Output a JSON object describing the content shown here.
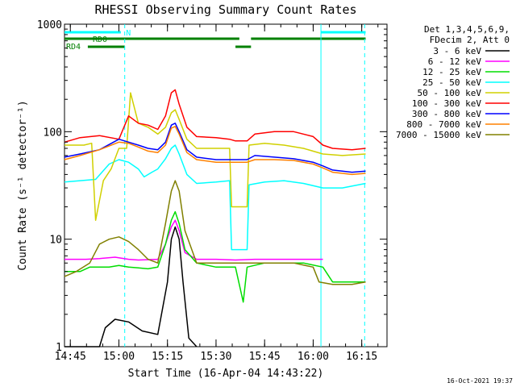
{
  "chart_data": {
    "type": "line",
    "title": "RHESSI Observing Summary Count Rates",
    "xlabel": "Start Time (16-Apr-04 14:43:22)",
    "ylabel": "Count Rate (s⁻¹ detector⁻¹)",
    "y_scale": "log",
    "xlim": [
      14.72,
      16.38
    ],
    "ylim": [
      1,
      1000
    ],
    "x_unit": "hours UT",
    "x_ticks": [
      {
        "value": 14.75,
        "label": "14:45"
      },
      {
        "value": 15.0,
        "label": "15:00"
      },
      {
        "value": 15.25,
        "label": "15:15"
      },
      {
        "value": 15.5,
        "label": "15:30"
      },
      {
        "value": 15.75,
        "label": "15:45"
      },
      {
        "value": 16.0,
        "label": "16:00"
      },
      {
        "value": 16.25,
        "label": "16:15"
      }
    ],
    "y_ticks": [
      {
        "value": 1,
        "label": "1"
      },
      {
        "value": 10,
        "label": "10"
      },
      {
        "value": 100,
        "label": "100"
      },
      {
        "value": 1000,
        "label": "1000"
      }
    ],
    "legend": {
      "placement": "outside-right",
      "header": [
        "Det 1,3,4,5,6,9,",
        "FDecim 2, Att 0"
      ]
    },
    "series": [
      {
        "name": "3 - 6 keV",
        "color": "#000000",
        "x": [
          14.72,
          14.9,
          14.93,
          14.98,
          15.05,
          15.12,
          15.2,
          15.25,
          15.27,
          15.29,
          15.31,
          15.33,
          15.36,
          15.4
        ],
        "y": [
          1,
          1,
          1.5,
          1.8,
          1.7,
          1.4,
          1.3,
          4,
          10,
          13,
          10,
          4,
          1.2,
          1
        ]
      },
      {
        "name": "6 - 12 keV",
        "color": "#ff00ff",
        "x": [
          14.72,
          14.83,
          14.9,
          14.98,
          15.05,
          15.1,
          15.2,
          15.24,
          15.27,
          15.29,
          15.31,
          15.34,
          15.4,
          15.5,
          15.6,
          15.7,
          15.8,
          15.9,
          16.0,
          16.05
        ],
        "y": [
          6.5,
          6.5,
          6.6,
          6.8,
          6.5,
          6.4,
          6.5,
          9,
          13,
          15,
          12,
          7.5,
          6.5,
          6.5,
          6.4,
          6.5,
          6.5,
          6.5,
          6.5,
          6.5
        ]
      },
      {
        "name": "12 - 25 keV",
        "color": "#00dd00",
        "x": [
          14.72,
          14.8,
          14.85,
          14.9,
          14.95,
          15.0,
          15.05,
          15.1,
          15.15,
          15.2,
          15.24,
          15.27,
          15.29,
          15.31,
          15.34,
          15.4,
          15.5,
          15.6,
          15.64,
          15.66,
          15.75,
          15.85,
          15.95,
          16.05,
          16.1,
          16.2,
          16.27
        ],
        "y": [
          5,
          5,
          5.5,
          5.5,
          5.5,
          5.7,
          5.5,
          5.4,
          5.3,
          5.5,
          9,
          15,
          18,
          14,
          8,
          6,
          5.5,
          5.5,
          2.6,
          5.5,
          6,
          6,
          6,
          5.5,
          4,
          4,
          4
        ]
      },
      {
        "name": "25 - 50 keV",
        "color": "#00ffff",
        "x": [
          14.72,
          14.8,
          14.88,
          14.95,
          15.0,
          15.05,
          15.1,
          15.13,
          15.17,
          15.2,
          15.24,
          15.27,
          15.29,
          15.31,
          15.35,
          15.4,
          15.5,
          15.57,
          15.58,
          15.66,
          15.67,
          15.75,
          15.85,
          15.95,
          16.05,
          16.15,
          16.27
        ],
        "y": [
          34,
          35,
          36,
          50,
          55,
          52,
          45,
          38,
          42,
          45,
          56,
          70,
          75,
          62,
          40,
          33,
          34,
          35,
          8,
          8,
          32,
          34,
          35,
          33,
          30,
          30,
          33
        ]
      },
      {
        "name": "50 - 100 keV",
        "color": "#d0d000",
        "x": [
          14.72,
          14.82,
          14.86,
          14.88,
          14.92,
          14.96,
          15.0,
          15.04,
          15.06,
          15.1,
          15.15,
          15.2,
          15.24,
          15.27,
          15.29,
          15.31,
          15.35,
          15.4,
          15.5,
          15.57,
          15.58,
          15.66,
          15.67,
          15.75,
          15.85,
          15.95,
          16.05,
          16.15,
          16.27
        ],
        "y": [
          75,
          75,
          78,
          15,
          35,
          45,
          70,
          70,
          230,
          120,
          110,
          95,
          110,
          150,
          160,
          130,
          85,
          70,
          70,
          70,
          20,
          20,
          75,
          78,
          75,
          70,
          62,
          60,
          62
        ]
      },
      {
        "name": "100 - 300 keV",
        "color": "#ff0000",
        "x": [
          14.72,
          14.8,
          14.9,
          15.0,
          15.05,
          15.1,
          15.15,
          15.2,
          15.24,
          15.27,
          15.29,
          15.31,
          15.35,
          15.4,
          15.5,
          15.57,
          15.6,
          15.66,
          15.7,
          15.8,
          15.9,
          16.0,
          16.05,
          16.1,
          16.2,
          16.27
        ],
        "y": [
          80,
          88,
          92,
          85,
          140,
          120,
          115,
          105,
          140,
          230,
          245,
          180,
          110,
          90,
          88,
          85,
          82,
          82,
          95,
          100,
          100,
          90,
          75,
          70,
          68,
          70
        ]
      },
      {
        "name": "300 - 800 keV",
        "color": "#0000ff",
        "x": [
          14.72,
          14.8,
          14.9,
          15.0,
          15.05,
          15.1,
          15.15,
          15.2,
          15.24,
          15.27,
          15.29,
          15.31,
          15.35,
          15.4,
          15.5,
          15.6,
          15.66,
          15.7,
          15.8,
          15.9,
          16.0,
          16.05,
          16.1,
          16.2,
          16.27
        ],
        "y": [
          58,
          62,
          68,
          85,
          80,
          75,
          70,
          68,
          80,
          115,
          120,
          100,
          68,
          58,
          55,
          55,
          55,
          60,
          58,
          56,
          52,
          48,
          44,
          42,
          43
        ]
      },
      {
        "name": "800 - 7000 keV",
        "color": "#ff8000",
        "x": [
          14.72,
          14.8,
          14.9,
          15.0,
          15.05,
          15.1,
          15.15,
          15.2,
          15.24,
          15.27,
          15.29,
          15.31,
          15.35,
          15.4,
          15.5,
          15.6,
          15.66,
          15.7,
          15.8,
          15.9,
          16.0,
          16.05,
          16.1,
          16.2,
          16.27
        ],
        "y": [
          55,
          60,
          68,
          80,
          78,
          72,
          66,
          64,
          75,
          108,
          112,
          95,
          64,
          55,
          52,
          52,
          52,
          55,
          55,
          54,
          50,
          46,
          42,
          40,
          41
        ]
      },
      {
        "name": "7000 - 15000 keV",
        "color": "#808000",
        "x": [
          14.72,
          14.78,
          14.85,
          14.9,
          14.95,
          15.0,
          15.05,
          15.1,
          15.15,
          15.2,
          15.24,
          15.27,
          15.29,
          15.31,
          15.34,
          15.4,
          15.5,
          15.6,
          15.7,
          15.8,
          15.9,
          16.0,
          16.03,
          16.1,
          16.2,
          16.27
        ],
        "y": [
          4.5,
          5,
          6,
          9,
          10,
          10.5,
          9.5,
          8,
          6.5,
          6,
          14,
          28,
          35,
          28,
          12,
          6,
          6,
          6,
          6,
          6,
          6,
          5.5,
          4,
          3.8,
          3.8,
          4
        ]
      }
    ],
    "vertical_lines": [
      {
        "x": 15.03,
        "style": "dashed",
        "color": "#00ffff"
      },
      {
        "x": 16.04,
        "style": "solid",
        "color": "#00ffff"
      },
      {
        "x": 16.265,
        "style": "dashed",
        "color": "#00ffff"
      }
    ],
    "flag_bars": [
      {
        "label": "N",
        "color": "#00ffff",
        "segments": [
          [
            14.72,
            15.01
          ],
          [
            16.04,
            16.27
          ]
        ]
      },
      {
        "label": "RD0",
        "color": "#008000",
        "segments": [
          [
            14.72,
            15.62
          ],
          [
            15.68,
            16.27
          ]
        ]
      },
      {
        "label": "RD4",
        "color": "#008000",
        "segments": [
          [
            14.84,
            15.03
          ],
          [
            15.6,
            15.68
          ]
        ]
      }
    ],
    "timestamp": "16-Oct-2021 19:37",
    "grid": false
  }
}
